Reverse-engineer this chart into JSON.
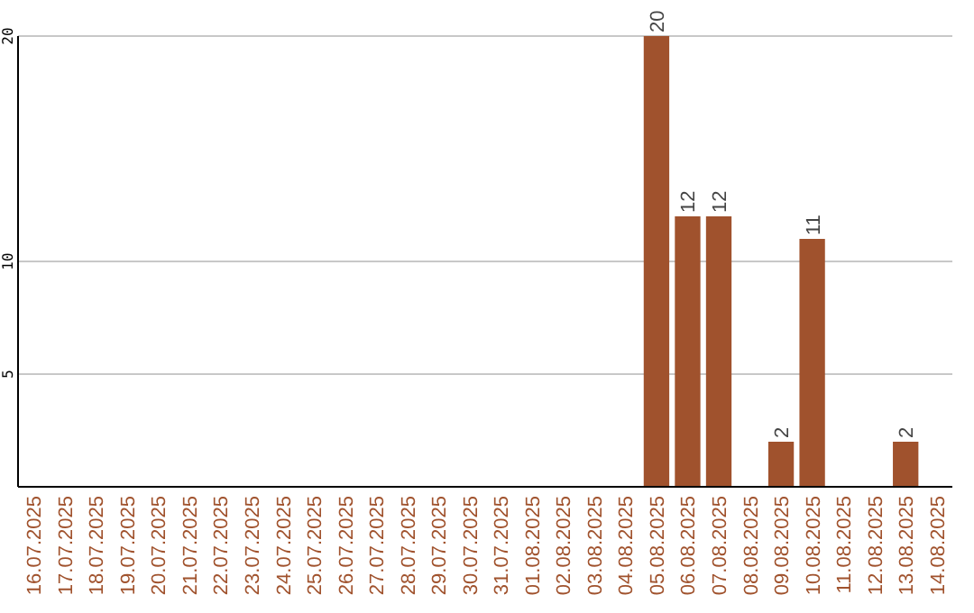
{
  "chart_data": {
    "type": "bar",
    "categories": [
      "16.07.2025",
      "17.07.2025",
      "18.07.2025",
      "19.07.2025",
      "20.07.2025",
      "21.07.2025",
      "22.07.2025",
      "23.07.2025",
      "24.07.2025",
      "25.07.2025",
      "26.07.2025",
      "27.07.2025",
      "28.07.2025",
      "29.07.2025",
      "30.07.2025",
      "31.07.2025",
      "01.08.2025",
      "02.08.2025",
      "03.08.2025",
      "04.08.2025",
      "05.08.2025",
      "06.08.2025",
      "07.08.2025",
      "08.08.2025",
      "09.08.2025",
      "10.08.2025",
      "11.08.2025",
      "12.08.2025",
      "13.08.2025",
      "14.08.2025"
    ],
    "values": [
      0,
      0,
      0,
      0,
      0,
      0,
      0,
      0,
      0,
      0,
      0,
      0,
      0,
      0,
      0,
      0,
      0,
      0,
      0,
      0,
      20,
      12,
      12,
      0,
      2,
      11,
      0,
      0,
      2,
      0
    ],
    "value_labels": [
      null,
      null,
      null,
      null,
      null,
      null,
      null,
      null,
      null,
      null,
      null,
      null,
      null,
      null,
      null,
      null,
      null,
      null,
      null,
      null,
      "20",
      "12",
      "12",
      null,
      "2",
      "11",
      null,
      null,
      "2",
      null
    ],
    "color": "#a0522d",
    "ylim": [
      0,
      20
    ],
    "yticks": [
      5,
      10,
      20
    ],
    "grid": "y"
  }
}
